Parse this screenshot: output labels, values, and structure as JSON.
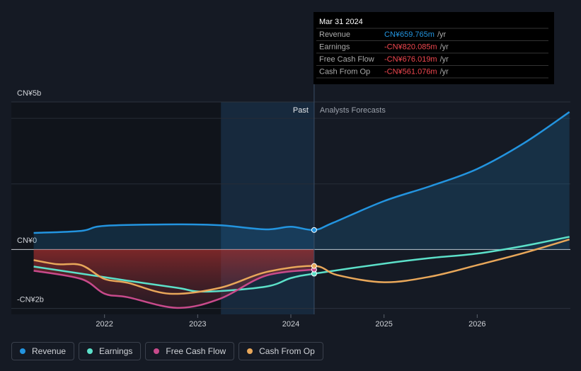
{
  "chart_data": {
    "type": "line",
    "xlim": [
      2021,
      2027
    ],
    "xticks": [
      2022,
      2023,
      2024,
      2025,
      2026
    ],
    "ylim": [
      -2.2,
      5
    ],
    "yticks": [
      {
        "value": 5,
        "label": "CN¥5b"
      },
      {
        "value": 0,
        "label": "CN¥0"
      },
      {
        "value": -2,
        "label": "-CN¥2b"
      }
    ],
    "highlight_start": 2023.25,
    "forecast_start": 2024.25,
    "past_label": "Past",
    "forecast_label": "Analysts Forecasts",
    "series": [
      {
        "name": "Revenue",
        "color": "#2394df",
        "x": [
          2021.24,
          2021.75,
          2022,
          2022.78,
          2023.24,
          2023.73,
          2024,
          2024.25,
          2024.45,
          2025,
          2025.5,
          2026,
          2026.5,
          2026.99
        ],
        "values": [
          0.56,
          0.63,
          0.8,
          0.85,
          0.82,
          0.68,
          0.77,
          0.66,
          0.9,
          1.64,
          2.15,
          2.73,
          3.6,
          4.66
        ]
      },
      {
        "name": "Earnings",
        "color": "#5ce0c9",
        "x": [
          2021.24,
          2021.75,
          2022.25,
          2022.78,
          2023.08,
          2023.73,
          2024,
          2024.25,
          2025,
          2025.5,
          2026,
          2026.5,
          2026.99
        ],
        "values": [
          -0.58,
          -0.82,
          -1.06,
          -1.3,
          -1.43,
          -1.26,
          -0.97,
          -0.82,
          -0.48,
          -0.29,
          -0.14,
          0.12,
          0.43
        ]
      },
      {
        "name": "Free Cash Flow",
        "color": "#c84a8b",
        "x": [
          2021.24,
          2021.75,
          2022,
          2022.25,
          2022.78,
          2023.24,
          2023.73,
          2024.25
        ],
        "values": [
          -0.72,
          -1.0,
          -1.5,
          -1.62,
          -1.98,
          -1.67,
          -0.89,
          -0.68
        ]
      },
      {
        "name": "Cash From Op",
        "color": "#e8a75a",
        "x": [
          2021.24,
          2021.49,
          2021.75,
          2022,
          2022.25,
          2022.7,
          2023.24,
          2023.73,
          2024.25,
          2024.5,
          2025,
          2025.5,
          2026,
          2026.5,
          2026.99
        ],
        "values": [
          -0.36,
          -0.5,
          -0.53,
          -1.0,
          -1.13,
          -1.5,
          -1.3,
          -0.77,
          -0.56,
          -0.87,
          -1.11,
          -0.92,
          -0.53,
          -0.12,
          0.34
        ]
      }
    ],
    "tooltip": {
      "date": "Mar 31 2024",
      "unit": "/yr",
      "rows": [
        {
          "label": "Revenue",
          "value": "CN¥659.765m",
          "color": "#2394df"
        },
        {
          "label": "Earnings",
          "value": "-CN¥820.085m",
          "color": "#f0474f"
        },
        {
          "label": "Free Cash Flow",
          "value": "-CN¥676.019m",
          "color": "#f0474f"
        },
        {
          "label": "Cash From Op",
          "value": "-CN¥561.076m",
          "color": "#f0474f"
        }
      ]
    }
  }
}
